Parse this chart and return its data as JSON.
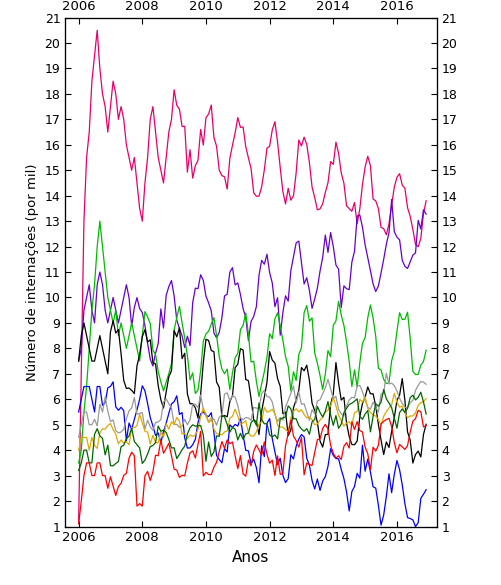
{
  "title": "",
  "xlabel": "Anos",
  "ylabel": "Número de internações (por mil)",
  "xlim": [
    2005.58,
    2017.25
  ],
  "ylim": [
    1,
    21
  ],
  "yticks": [
    1,
    2,
    3,
    4,
    5,
    6,
    7,
    8,
    9,
    10,
    11,
    12,
    13,
    14,
    15,
    16,
    17,
    18,
    19,
    20,
    21
  ],
  "xticks": [
    2006,
    2008,
    2010,
    2012,
    2014,
    2016
  ],
  "n_months": 132,
  "start_year": 2006.0,
  "colors": {
    "magenta": "#E8006A",
    "purple": "#6600CC",
    "green": "#00BB00",
    "black": "#000000",
    "blue": "#0000FF",
    "gray": "#999999",
    "yellow": "#DDAA00",
    "darkgreen": "#006600",
    "red": "#FF0000"
  },
  "figsize": [
    5.02,
    5.85
  ],
  "dpi": 100
}
